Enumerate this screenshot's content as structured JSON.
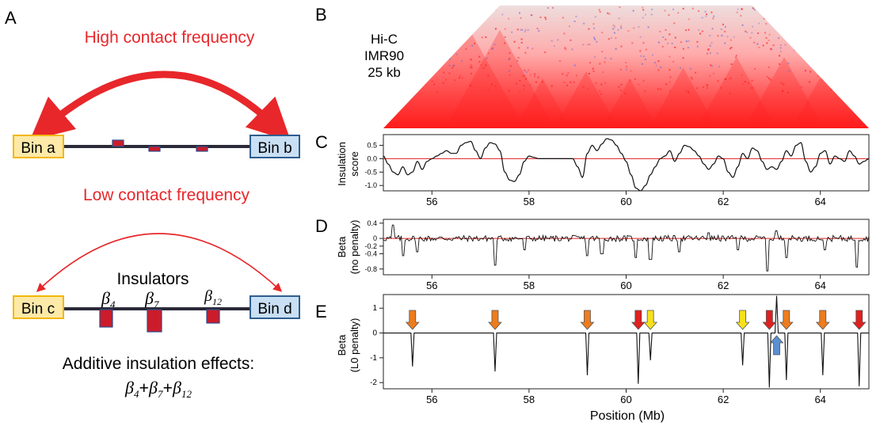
{
  "panels": {
    "a": {
      "letter": "A",
      "high_label": "High contact frequency",
      "low_label": "Low contact frequency",
      "bin_a": "Bin a",
      "bin_b": "Bin b",
      "bin_c": "Bin c",
      "bin_d": "Bin d",
      "insulators_label": "Insulators",
      "beta_sym": "β",
      "beta_sub": [
        "4",
        "7",
        "12"
      ],
      "additive_label": "Additive insulation effects:",
      "sum_plus": "+"
    },
    "b": {
      "letter": "B",
      "lines": [
        "Hi-C",
        "IMR90",
        "25 kb"
      ]
    },
    "c": {
      "letter": "C",
      "ylabel_top": "Insulation",
      "ylabel_bottom": "score"
    },
    "d": {
      "letter": "D",
      "ylabel_top": "Beta",
      "ylabel_bottom": "(no penalty)"
    },
    "e": {
      "letter": "E",
      "ylabel_top": "Beta",
      "ylabel_bottom": "(L0 penalty)"
    },
    "xlabel": "Position (Mb)",
    "colors": {
      "red": "#e8272b",
      "heatmap_red": "#ff2020",
      "heatmap_blue": "#6f6fd8",
      "bin_yellow_fill": "#fde9a8",
      "bin_yellow_stroke": "#f2b705",
      "bin_blue_fill": "#c9dff3",
      "bin_blue_stroke": "#2e5d8f",
      "insulator_fill": "#cc1c2b",
      "insulator_stroke": "#2e4b8a",
      "arrow_orange": "#ee7c1d",
      "arrow_red": "#e0201f",
      "arrow_yellow": "#f7e11c",
      "arrow_blue": "#5b8fd0"
    }
  },
  "chart_data": [
    {
      "id": "C",
      "type": "line",
      "ylabel": "Insulation score",
      "xlim": [
        55,
        65
      ],
      "ylim": [
        -1.2,
        0.9
      ],
      "yticks": [
        0.5,
        0.0,
        -0.5,
        -1.0
      ],
      "ytick_labels": [
        "0.5",
        "0.0",
        "-0.5",
        "-1.0"
      ],
      "xticks": [
        56,
        58,
        60,
        62,
        64
      ],
      "xtick_labels": [
        "56",
        "58",
        "60",
        "62",
        "64"
      ],
      "reference_line": 0,
      "x": [
        55.0,
        55.1,
        55.2,
        55.3,
        55.4,
        55.5,
        55.6,
        55.7,
        55.8,
        55.9,
        56.0,
        56.1,
        56.2,
        56.3,
        56.4,
        56.5,
        56.6,
        56.7,
        56.8,
        56.9,
        57.0,
        57.1,
        57.2,
        57.3,
        57.4,
        57.5,
        57.6,
        57.7,
        57.8,
        57.9,
        58.0,
        58.1,
        58.2,
        58.3,
        58.4,
        58.5,
        58.6,
        58.7,
        58.8,
        58.9,
        59.0,
        59.1,
        59.2,
        59.3,
        59.4,
        59.5,
        59.6,
        59.7,
        59.8,
        59.9,
        60.0,
        60.1,
        60.2,
        60.3,
        60.4,
        60.5,
        60.6,
        60.7,
        60.8,
        60.9,
        61.0,
        61.1,
        61.2,
        61.3,
        61.4,
        61.5,
        61.6,
        61.7,
        61.8,
        61.9,
        62.0,
        62.1,
        62.2,
        62.3,
        62.4,
        62.5,
        62.6,
        62.7,
        62.8,
        62.9,
        63.0,
        63.1,
        63.2,
        63.3,
        63.4,
        63.5,
        63.6,
        63.7,
        63.8,
        63.9,
        64.0,
        64.1,
        64.2,
        64.3,
        64.4,
        64.5,
        64.6,
        64.7,
        64.8,
        64.9,
        65.0
      ],
      "y": [
        0.1,
        -0.2,
        -0.5,
        -0.6,
        -0.3,
        -0.6,
        -0.5,
        -0.1,
        -0.4,
        -0.1,
        0.0,
        0.1,
        0.2,
        0.3,
        0.2,
        0.2,
        0.5,
        0.6,
        0.65,
        0.3,
        0.0,
        0.4,
        0.6,
        0.55,
        0.3,
        -0.5,
        -0.8,
        -0.85,
        -0.6,
        -0.1,
        0.1,
        0.05,
        0.0,
        0.0,
        0.0,
        0.0,
        0.0,
        0.0,
        0.0,
        0.0,
        -0.3,
        -0.7,
        0.2,
        0.5,
        0.3,
        0.55,
        0.75,
        0.7,
        0.5,
        0.2,
        -0.1,
        -0.6,
        -1.1,
        -1.2,
        -1.0,
        -0.6,
        -0.3,
        0.0,
        0.1,
        0.3,
        -0.1,
        0.2,
        0.5,
        0.45,
        0.3,
        0.1,
        -0.2,
        -0.4,
        -0.2,
        0.1,
        0.0,
        -0.5,
        -0.7,
        -0.3,
        0.2,
        0.0,
        0.4,
        0.3,
        -0.1,
        -0.4,
        -0.3,
        -0.4,
        -0.1,
        0.3,
        0.1,
        0.5,
        0.6,
        -0.1,
        -0.5,
        -0.3,
        0.2,
        0.3,
        -0.2,
        0.1,
        0.0,
        -0.1,
        0.3,
        0.1,
        -0.2,
        -0.1,
        0.0
      ]
    },
    {
      "id": "D",
      "type": "line",
      "ylabel": "Beta (no penalty)",
      "xlim": [
        55,
        65
      ],
      "ylim": [
        -0.95,
        0.5
      ],
      "yticks": [
        0.4,
        0.0,
        -0.2,
        -0.4,
        -0.8
      ],
      "ytick_labels": [
        "0.4",
        "0",
        "-0.2",
        "-0.4",
        "-0.8"
      ],
      "xticks": [
        56,
        58,
        60,
        62,
        64
      ],
      "xtick_labels": [
        "56",
        "58",
        "60",
        "62",
        "64"
      ],
      "reference_line": 0,
      "noise_amplitude": 0.08,
      "dips": [
        {
          "x": 55.4,
          "y": -0.45
        },
        {
          "x": 55.7,
          "y": -0.35
        },
        {
          "x": 57.3,
          "y": -0.7
        },
        {
          "x": 57.9,
          "y": -0.3
        },
        {
          "x": 59.2,
          "y": -0.45
        },
        {
          "x": 59.5,
          "y": -0.4
        },
        {
          "x": 60.2,
          "y": -0.5
        },
        {
          "x": 60.5,
          "y": -0.55
        },
        {
          "x": 61.1,
          "y": -0.35
        },
        {
          "x": 62.3,
          "y": -0.3
        },
        {
          "x": 62.9,
          "y": -0.85
        },
        {
          "x": 63.3,
          "y": -0.5
        },
        {
          "x": 64.1,
          "y": -0.3
        },
        {
          "x": 64.75,
          "y": -0.75
        }
      ],
      "peaks": [
        {
          "x": 55.2,
          "y": 0.35
        },
        {
          "x": 61.7,
          "y": 0.15
        },
        {
          "x": 63.1,
          "y": 0.2
        }
      ]
    },
    {
      "id": "E",
      "type": "line",
      "ylabel": "Beta (L0 penalty)",
      "xlim": [
        55,
        65
      ],
      "ylim": [
        -2.25,
        1.55
      ],
      "yticks": [
        1,
        0,
        -1,
        -2
      ],
      "ytick_labels": [
        "1",
        "0",
        "-1",
        "-2"
      ],
      "xticks": [
        56,
        58,
        60,
        62,
        64
      ],
      "xtick_labels": [
        "56",
        "58",
        "60",
        "62",
        "64"
      ],
      "xlabel": "Position (Mb)",
      "spikes": [
        {
          "x": 55.6,
          "y": -1.35
        },
        {
          "x": 57.3,
          "y": -1.55
        },
        {
          "x": 59.2,
          "y": -1.7
        },
        {
          "x": 60.25,
          "y": -2.05
        },
        {
          "x": 60.5,
          "y": -1.1
        },
        {
          "x": 62.4,
          "y": -1.3
        },
        {
          "x": 62.95,
          "y": -2.2
        },
        {
          "x": 63.1,
          "y": 1.5
        },
        {
          "x": 63.3,
          "y": -1.9
        },
        {
          "x": 64.05,
          "y": -1.7
        },
        {
          "x": 64.8,
          "y": -2.15
        }
      ],
      "markers": [
        {
          "x": 55.6,
          "color": "orange",
          "dir": "down"
        },
        {
          "x": 57.3,
          "color": "orange",
          "dir": "down"
        },
        {
          "x": 59.2,
          "color": "orange",
          "dir": "down"
        },
        {
          "x": 60.25,
          "color": "red",
          "dir": "down"
        },
        {
          "x": 60.5,
          "color": "yellow",
          "dir": "down"
        },
        {
          "x": 62.4,
          "color": "yellow",
          "dir": "down"
        },
        {
          "x": 62.95,
          "color": "red",
          "dir": "down"
        },
        {
          "x": 63.1,
          "color": "blue",
          "dir": "up"
        },
        {
          "x": 63.3,
          "color": "orange",
          "dir": "down"
        },
        {
          "x": 64.05,
          "color": "orange",
          "dir": "down"
        },
        {
          "x": 64.8,
          "color": "red",
          "dir": "down"
        }
      ]
    }
  ]
}
